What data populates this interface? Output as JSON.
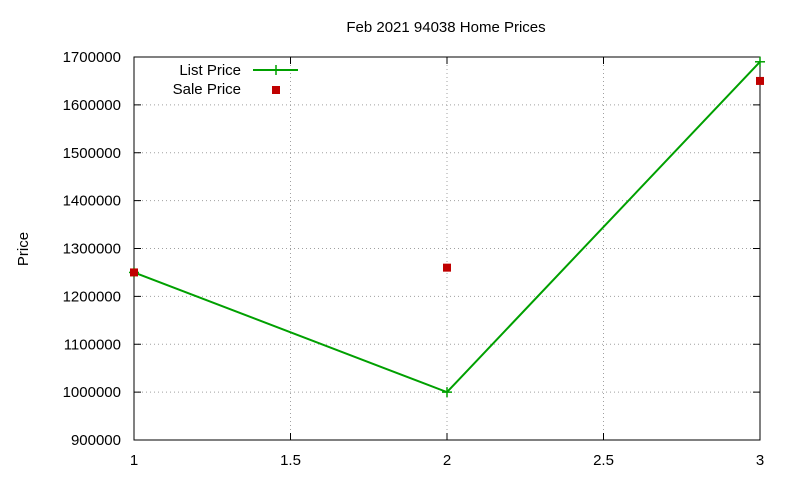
{
  "chart_data": {
    "type": "line",
    "title": "Feb 2021 94038 Home Prices",
    "xlabel": "",
    "ylabel": "Price",
    "xlim": [
      1,
      3
    ],
    "ylim": [
      900000,
      1700000
    ],
    "xticks": [
      "1",
      "1.5",
      "2",
      "2.5",
      "3"
    ],
    "yticks": [
      "900000",
      "1000000",
      "1100000",
      "1200000",
      "1300000",
      "1400000",
      "1500000",
      "1600000",
      "1700000"
    ],
    "grid": true,
    "legend_position": "top-left",
    "series": [
      {
        "name": "List Price",
        "style": "line-plus",
        "color": "#00a000",
        "x": [
          1,
          2,
          3
        ],
        "y": [
          1250000,
          1000000,
          1690000
        ]
      },
      {
        "name": "Sale Price",
        "style": "square-points",
        "color": "#c00000",
        "x": [
          1,
          2,
          3
        ],
        "y": [
          1250000,
          1260000,
          1650000
        ]
      }
    ]
  }
}
